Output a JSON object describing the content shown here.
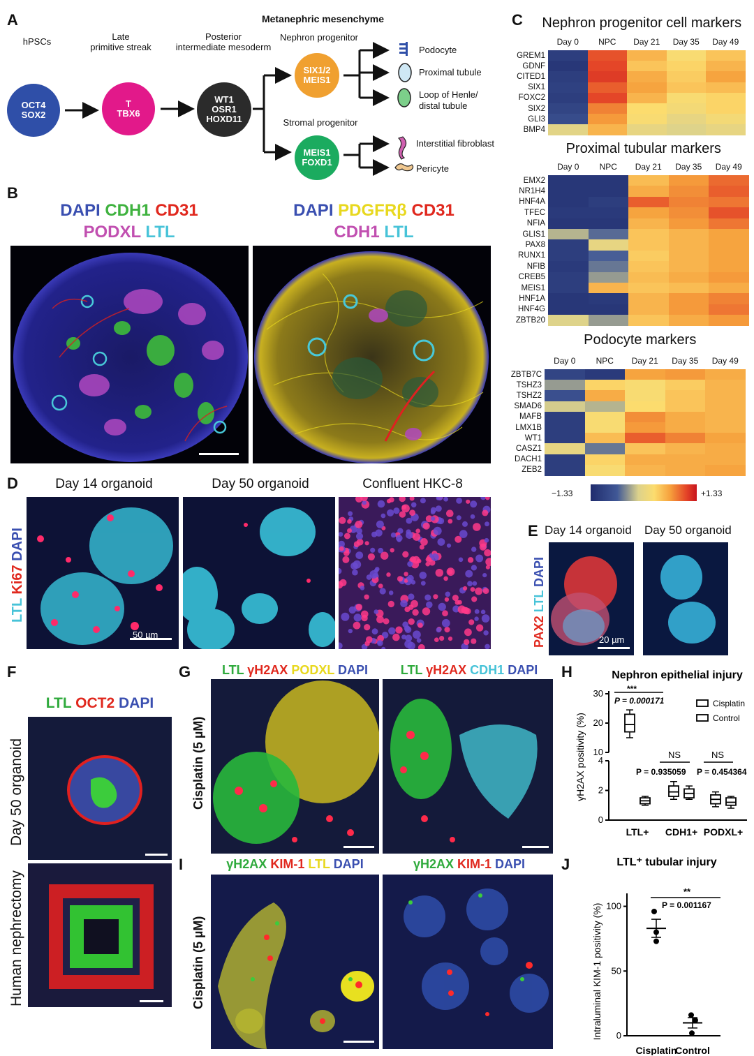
{
  "panelA": {
    "label": "A",
    "stages": {
      "hpscs": "hPSCs",
      "late_ps": [
        "Late",
        "primitive streak"
      ],
      "pim": [
        "Posterior",
        "intermediate mesoderm"
      ],
      "mm": "Metanephric mesenchyme",
      "np": "Nephron progenitor",
      "sp": "Stromal progenitor"
    },
    "nodes": {
      "hpscs": [
        "OCT4",
        "SOX2"
      ],
      "late_ps": [
        "T",
        "TBX6"
      ],
      "pim": [
        "WT1",
        "OSR1",
        "HOXD11"
      ],
      "np": [
        "SIX1/2",
        "MEIS1"
      ],
      "sp": [
        "MEIS1",
        "FOXD1"
      ]
    },
    "colors": {
      "hpscs": "#2f4fa8",
      "late_ps": "#e2198a",
      "pim": "#2b2b2b",
      "np": "#f0a030",
      "sp": "#1bab5f"
    },
    "outcomes": {
      "podocyte": "Podocyte",
      "proximal": "Proximal tubule",
      "loop": [
        "Loop of Henle/",
        "distal tubule"
      ],
      "fibro": "Interstitial fibroblast",
      "pericyte": "Pericyte"
    }
  },
  "panelB": {
    "label": "B",
    "left_title": [
      [
        {
          "t": "DAPI",
          "c": "#3a4fb0"
        },
        {
          "t": "CDH1",
          "c": "#3fb23f"
        },
        {
          "t": "CD31",
          "c": "#e0281e"
        }
      ],
      [
        {
          "t": "PODXL",
          "c": "#c14fb0"
        },
        {
          "t": "LTL",
          "c": "#47c3d8"
        }
      ]
    ],
    "right_title": [
      [
        {
          "t": "DAPI",
          "c": "#3a4fb0"
        },
        {
          "t": "PDGFRβ",
          "c": "#e8d81e"
        },
        {
          "t": "CD31",
          "c": "#e0281e"
        }
      ],
      [
        {
          "t": "CDH1",
          "c": "#c14fb0"
        },
        {
          "t": "LTL",
          "c": "#47c3d8"
        }
      ]
    ]
  },
  "panelC": {
    "label": "C",
    "columns": [
      "Day 0",
      "NPC",
      "Day 21",
      "Day 35",
      "Day 49"
    ],
    "scale": {
      "min": "−1.33",
      "max": "+1.33"
    },
    "heatmaps": [
      {
        "title": "Nephron progenitor cell markers",
        "genes": [
          "GREM1",
          "GDNF",
          "CITED1",
          "SIX1",
          "FOXC2",
          "SIX2",
          "GLI3",
          "BMP4"
        ],
        "values": [
          [
            0.1,
            0.88,
            0.7,
            0.58,
            0.66
          ],
          [
            0.06,
            0.9,
            0.66,
            0.62,
            0.7
          ],
          [
            0.1,
            0.92,
            0.72,
            0.64,
            0.74
          ],
          [
            0.12,
            0.86,
            0.74,
            0.66,
            0.68
          ],
          [
            0.1,
            0.9,
            0.7,
            0.58,
            0.62
          ],
          [
            0.14,
            0.8,
            0.6,
            0.56,
            0.62
          ],
          [
            0.18,
            0.76,
            0.58,
            0.5,
            0.56
          ],
          [
            0.48,
            0.7,
            0.5,
            0.46,
            0.5
          ]
        ]
      },
      {
        "title": "Proximal tubular markers",
        "genes": [
          "EMX2",
          "NR1H4",
          "HNF4A",
          "TFEC",
          "NFIA",
          "GLIS1",
          "PAX8",
          "RUNX1",
          "NFIB",
          "CREB5",
          "MEIS1",
          "HNF1A",
          "HNF4G",
          "ZBTB20"
        ],
        "values": [
          [
            0.06,
            0.06,
            0.68,
            0.76,
            0.84
          ],
          [
            0.06,
            0.06,
            0.72,
            0.78,
            0.86
          ],
          [
            0.06,
            0.1,
            0.86,
            0.8,
            0.82
          ],
          [
            0.08,
            0.08,
            0.74,
            0.78,
            0.88
          ],
          [
            0.06,
            0.06,
            0.7,
            0.76,
            0.82
          ],
          [
            0.4,
            0.28,
            0.66,
            0.7,
            0.74
          ],
          [
            0.1,
            0.5,
            0.66,
            0.7,
            0.74
          ],
          [
            0.1,
            0.26,
            0.64,
            0.7,
            0.74
          ],
          [
            0.08,
            0.3,
            0.66,
            0.7,
            0.74
          ],
          [
            0.1,
            0.36,
            0.68,
            0.72,
            0.76
          ],
          [
            0.1,
            0.7,
            0.66,
            0.68,
            0.72
          ],
          [
            0.06,
            0.08,
            0.7,
            0.76,
            0.8
          ],
          [
            0.06,
            0.06,
            0.7,
            0.76,
            0.82
          ],
          [
            0.46,
            0.36,
            0.66,
            0.72,
            0.76
          ]
        ]
      },
      {
        "title": "Podocyte markers",
        "genes": [
          "ZBTB7C",
          "TSHZ3",
          "TSHZ2",
          "SMAD6",
          "MAFB",
          "LMX1B",
          "WT1",
          "CASZ1",
          "DACH1",
          "ZEB2"
        ],
        "values": [
          [
            0.14,
            0.08,
            0.74,
            0.76,
            0.72
          ],
          [
            0.36,
            0.62,
            0.58,
            0.64,
            0.7
          ],
          [
            0.2,
            0.72,
            0.58,
            0.66,
            0.7
          ],
          [
            0.44,
            0.4,
            0.6,
            0.66,
            0.7
          ],
          [
            0.1,
            0.58,
            0.78,
            0.72,
            0.7
          ],
          [
            0.1,
            0.58,
            0.76,
            0.72,
            0.7
          ],
          [
            0.1,
            0.68,
            0.86,
            0.8,
            0.74
          ],
          [
            0.5,
            0.3,
            0.66,
            0.7,
            0.72
          ],
          [
            0.1,
            0.62,
            0.72,
            0.72,
            0.72
          ],
          [
            0.1,
            0.58,
            0.7,
            0.72,
            0.74
          ]
        ]
      }
    ]
  },
  "panelD": {
    "label": "D",
    "titles": [
      "Day 14 organoid",
      "Day 50 organoid",
      "Confluent HKC-8"
    ],
    "side": [
      {
        "t": "LTL",
        "c": "#47c3d8"
      },
      {
        "t": "Ki67",
        "c": "#e0281e"
      },
      {
        "t": "DAPI",
        "c": "#3a4fb0"
      }
    ],
    "scale": "50 µm"
  },
  "panelE": {
    "label": "E",
    "titles": [
      "Day 14 organoid",
      "Day 50 organoid"
    ],
    "side": [
      {
        "t": "PAX2",
        "c": "#e0281e"
      },
      {
        "t": "LTL",
        "c": "#47c3d8"
      },
      {
        "t": "DAPI",
        "c": "#3a4fb0"
      }
    ],
    "scale": "20 µm"
  },
  "panelF": {
    "label": "F",
    "title": [
      {
        "t": "LTL",
        "c": "#2faa3c"
      },
      {
        "t": "OCT2",
        "c": "#e0281e"
      },
      {
        "t": "DAPI",
        "c": "#3a4fb0"
      }
    ],
    "side_top": "Day 50 organoid",
    "side_bottom": "Human nephrectomy"
  },
  "panelG": {
    "label": "G",
    "left_title": [
      {
        "t": "LTL",
        "c": "#2faa3c"
      },
      {
        "t": "γH2AX",
        "c": "#e0281e"
      },
      {
        "t": "PODXL",
        "c": "#e8d81e"
      },
      {
        "t": "DAPI",
        "c": "#3a4fb0"
      }
    ],
    "right_title": [
      {
        "t": "LTL",
        "c": "#2faa3c"
      },
      {
        "t": "γH2AX",
        "c": "#e0281e"
      },
      {
        "t": "CDH1",
        "c": "#47c3d8"
      },
      {
        "t": "DAPI",
        "c": "#3a4fb0"
      }
    ],
    "side": "Cisplatin (5 µM)"
  },
  "panelI": {
    "label": "I",
    "left_title": [
      {
        "t": "γH2AX",
        "c": "#2faa3c"
      },
      {
        "t": "KIM-1",
        "c": "#e0281e"
      },
      {
        "t": "LTL",
        "c": "#e8d81e"
      },
      {
        "t": "DAPI",
        "c": "#3a4fb0"
      }
    ],
    "right_title": [
      {
        "t": "γH2AX",
        "c": "#2faa3c"
      },
      {
        "t": "KIM-1",
        "c": "#e0281e"
      },
      {
        "t": "DAPI",
        "c": "#3a4fb0"
      }
    ],
    "side": "Cisplatin (5 µM)"
  },
  "chart_data": [
    {
      "type": "box",
      "panel": "H",
      "title": "Nephron epithelial injury",
      "ylabel": "γH2AX positivity (%)",
      "axis_break": {
        "lower": [
          0,
          4
        ],
        "upper": [
          10,
          30
        ]
      },
      "yticks_lower": [
        0,
        2,
        4
      ],
      "yticks_upper": [
        10,
        20,
        30
      ],
      "categories": [
        "LTL+",
        "CDH1+",
        "PODXL+"
      ],
      "legend": [
        "Cisplatin",
        "Control"
      ],
      "series": [
        {
          "name": "Cisplatin",
          "boxes": [
            {
              "min": 15.0,
              "q1": 17.0,
              "median": 19.5,
              "q3": 23.0,
              "max": 24.5
            },
            {
              "min": 1.4,
              "q1": 1.6,
              "median": 1.9,
              "q3": 2.3,
              "max": 2.6
            },
            {
              "min": 0.9,
              "q1": 1.1,
              "median": 1.4,
              "q3": 1.7,
              "max": 1.9
            }
          ]
        },
        {
          "name": "Control",
          "boxes": [
            {
              "min": 1.0,
              "q1": 1.1,
              "median": 1.3,
              "q3": 1.5,
              "max": 1.6
            },
            {
              "min": 1.4,
              "q1": 1.5,
              "median": 1.8,
              "q3": 2.1,
              "max": 2.3
            },
            {
              "min": 0.8,
              "q1": 1.0,
              "median": 1.2,
              "q3": 1.5,
              "max": 1.6
            }
          ]
        }
      ],
      "annotations": [
        {
          "sig": "***",
          "p": "P = 0.000171"
        },
        {
          "sig": "NS",
          "p": "P = 0.935059"
        },
        {
          "sig": "NS",
          "p": "P = 0.454364"
        }
      ]
    },
    {
      "type": "scatter",
      "panel": "J",
      "title": "LTL⁺ tubular injury",
      "ylabel": "Intraluminal KIM-1 positivity (%)",
      "ylim": [
        0,
        110
      ],
      "yticks": [
        0,
        50,
        100
      ],
      "categories": [
        "Cisplatin",
        "Control"
      ],
      "points": [
        [
          96,
          80,
          73
        ],
        [
          16,
          12,
          2
        ]
      ],
      "mean": [
        83,
        10
      ],
      "sem": [
        7,
        4
      ],
      "annotation": {
        "sig": "**",
        "p": "P = 0.001167"
      }
    }
  ]
}
